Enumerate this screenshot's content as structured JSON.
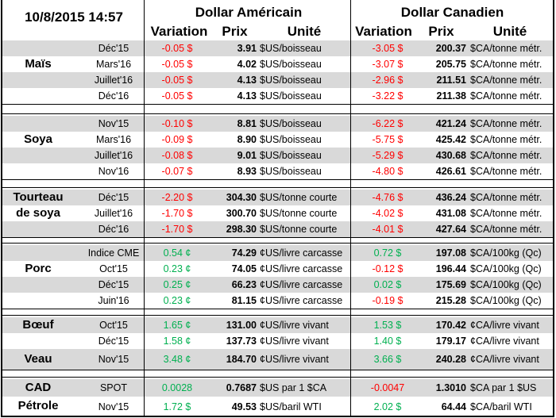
{
  "timestamp": "10/8/2015 14:57",
  "headers": {
    "usd": "Dollar Américain",
    "cad": "Dollar Canadien",
    "variation": "Variation",
    "prix": "Prix",
    "unite": "Unité"
  },
  "colors": {
    "negative": "#ff0000",
    "positive": "#00b050",
    "row_shade": "#d9d9d9"
  },
  "groups": [
    {
      "labels": [
        "Maïs"
      ],
      "rows": [
        [
          "Déc'15",
          "-0.05 $",
          "3.91",
          "$US/boisseau",
          "-3.05 $",
          "200.37",
          "$CA/tonne métr."
        ],
        [
          "Mars'16",
          "-0.05 $",
          "4.02",
          "$US/boisseau",
          "-3.07 $",
          "205.75",
          "$CA/tonne métr."
        ],
        [
          "Juillet'16",
          "-0.05 $",
          "4.13",
          "$US/boisseau",
          "-2.96 $",
          "211.51",
          "$CA/tonne métr."
        ],
        [
          "Déc'16",
          "-0.05 $",
          "4.13",
          "$US/boisseau",
          "-3.22 $",
          "211.38",
          "$CA/tonne métr."
        ]
      ]
    },
    {
      "labels": [
        "Soya"
      ],
      "rows": [
        [
          "Nov'15",
          "-0.10 $",
          "8.81",
          "$US/boisseau",
          "-6.22 $",
          "421.24",
          "$CA/tonne métr."
        ],
        [
          "Mars'16",
          "-0.09 $",
          "8.90",
          "$US/boisseau",
          "-5.75 $",
          "425.42",
          "$CA/tonne métr."
        ],
        [
          "Juillet'16",
          "-0.08 $",
          "9.01",
          "$US/boisseau",
          "-5.29 $",
          "430.68",
          "$CA/tonne métr."
        ],
        [
          "Nov'16",
          "-0.07 $",
          "8.93",
          "$US/boisseau",
          "-4.80 $",
          "426.61",
          "$CA/tonne métr."
        ]
      ]
    },
    {
      "labels": [
        "Tourteau de soya"
      ],
      "rows": [
        [
          "Déc'15",
          "-2.20 $",
          "304.30",
          "$US/tonne courte",
          "-4.76 $",
          "436.24",
          "$CA/tonne métr."
        ],
        [
          "Juillet'16",
          "-1.70 $",
          "300.70",
          "$US/tonne courte",
          "-4.02 $",
          "431.08",
          "$CA/tonne métr."
        ],
        [
          "Déc'16",
          "-1.70 $",
          "298.30",
          "$US/tonne courte",
          "-4.01 $",
          "427.64",
          "$CA/tonne métr."
        ]
      ]
    },
    {
      "labels": [
        "Porc"
      ],
      "rows": [
        [
          "Indice CME",
          "0.54 ¢",
          "74.29",
          "¢US/livre carcasse",
          "0.72 $",
          "197.08",
          "$CA/100kg (Qc)"
        ],
        [
          "Oct'15",
          "0.23 ¢",
          "74.05",
          "¢US/livre carcasse",
          "-0.12 $",
          "196.44",
          "$CA/100kg (Qc)"
        ],
        [
          "Déc'15",
          "0.25 ¢",
          "66.23",
          "¢US/livre carcasse",
          "0.02 $",
          "175.69",
          "$CA/100kg (Qc)"
        ],
        [
          "Juin'16",
          "0.23 ¢",
          "81.15",
          "¢US/livre carcasse",
          "-0.19 $",
          "215.28",
          "$CA/100kg (Qc)"
        ]
      ]
    },
    {
      "labels": [
        "Bœuf",
        "Veau"
      ],
      "rows": [
        [
          "Oct'15",
          "1.65 ¢",
          "131.00",
          "¢US/livre vivant",
          "1.53 $",
          "170.42",
          "¢CA/livre vivant"
        ],
        [
          "Déc'15",
          "1.58 ¢",
          "137.73",
          "¢US/livre vivant",
          "1.40 $",
          "179.17",
          "¢CA/livre vivant"
        ],
        [
          "Nov'15",
          "3.48 ¢",
          "184.70",
          "¢US/livre vivant",
          "3.66 $",
          "240.28",
          "¢CA/livre vivant"
        ]
      ]
    },
    {
      "labels": [
        "CAD",
        "Pétrole"
      ],
      "rows": [
        [
          "SPOT",
          "0.0028",
          "0.7687",
          "$US par 1 $CA",
          "-0.0047",
          "1.3010",
          "$CA par 1 $US"
        ],
        [
          "Nov'15",
          "1.72 $",
          "49.53",
          "$US/baril WTI",
          "2.02 $",
          "64.44",
          "$CA/baril WTI"
        ]
      ]
    }
  ]
}
